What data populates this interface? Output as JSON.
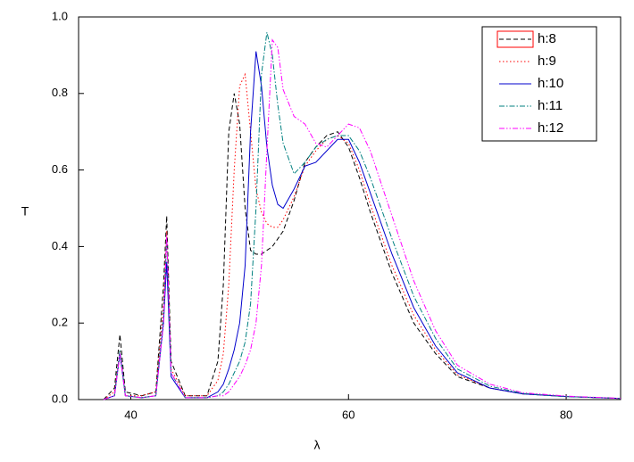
{
  "chart_data": {
    "type": "line",
    "xlabel": "λ",
    "ylabel": "T",
    "x": [
      37.5,
      38.5,
      39,
      39.5,
      41,
      42.3,
      43,
      43.3,
      43.7,
      45,
      47,
      48,
      48.5,
      49,
      49.5,
      50,
      50.5,
      51,
      51.5,
      52,
      52.5,
      53,
      53.5,
      54,
      55,
      56,
      57,
      58,
      59,
      60,
      61,
      62,
      64,
      66,
      68,
      70,
      73,
      76,
      80,
      85
    ],
    "series": [
      {
        "name": "h:8",
        "color": "#000000",
        "dash": "5,3",
        "values": [
          0,
          0.03,
          0.17,
          0.02,
          0.01,
          0.02,
          0.3,
          0.48,
          0.1,
          0.01,
          0.01,
          0.1,
          0.3,
          0.7,
          0.8,
          0.72,
          0.5,
          0.39,
          0.38,
          0.38,
          0.39,
          0.4,
          0.42,
          0.44,
          0.52,
          0.62,
          0.66,
          0.69,
          0.7,
          0.66,
          0.58,
          0.49,
          0.33,
          0.2,
          0.12,
          0.06,
          0.03,
          0.015,
          0.008,
          0.003
        ]
      },
      {
        "name": "h:9",
        "color": "#ff0000",
        "dash": "1.5,2.5",
        "values": [
          0,
          0.02,
          0.13,
          0.01,
          0.01,
          0.02,
          0.25,
          0.44,
          0.08,
          0.01,
          0.01,
          0.05,
          0.12,
          0.3,
          0.6,
          0.82,
          0.85,
          0.7,
          0.55,
          0.49,
          0.46,
          0.45,
          0.45,
          0.47,
          0.53,
          0.61,
          0.65,
          0.68,
          0.69,
          0.67,
          0.6,
          0.51,
          0.35,
          0.22,
          0.13,
          0.065,
          0.03,
          0.015,
          0.008,
          0.003
        ]
      },
      {
        "name": "h:10",
        "color": "#0000cc",
        "dash": "none",
        "values": [
          0,
          0.01,
          0.12,
          0.01,
          0.005,
          0.01,
          0.2,
          0.36,
          0.06,
          0.005,
          0.005,
          0.02,
          0.04,
          0.08,
          0.13,
          0.2,
          0.35,
          0.7,
          0.91,
          0.82,
          0.66,
          0.56,
          0.51,
          0.5,
          0.55,
          0.61,
          0.62,
          0.65,
          0.68,
          0.68,
          0.62,
          0.54,
          0.38,
          0.24,
          0.14,
          0.07,
          0.03,
          0.015,
          0.008,
          0.003
        ]
      },
      {
        "name": "h:11",
        "color": "#008080",
        "dash": "6,2,1.5,2",
        "values": [
          0,
          0.01,
          0.13,
          0.01,
          0.005,
          0.01,
          0.22,
          0.42,
          0.07,
          0.005,
          0.005,
          0.01,
          0.02,
          0.04,
          0.07,
          0.1,
          0.15,
          0.25,
          0.5,
          0.85,
          0.96,
          0.9,
          0.77,
          0.67,
          0.59,
          0.62,
          0.66,
          0.68,
          0.69,
          0.69,
          0.65,
          0.58,
          0.42,
          0.27,
          0.16,
          0.08,
          0.035,
          0.016,
          0.008,
          0.003
        ]
      },
      {
        "name": "h:12",
        "color": "#ff00ff",
        "dash": "6,2,1.5,2,1.5,2",
        "values": [
          0,
          0.01,
          0.12,
          0.01,
          0.005,
          0.01,
          0.2,
          0.43,
          0.07,
          0.005,
          0.005,
          0.01,
          0.01,
          0.02,
          0.04,
          0.06,
          0.09,
          0.13,
          0.2,
          0.35,
          0.65,
          0.94,
          0.92,
          0.81,
          0.74,
          0.72,
          0.67,
          0.66,
          0.69,
          0.72,
          0.71,
          0.65,
          0.48,
          0.31,
          0.18,
          0.09,
          0.04,
          0.018,
          0.009,
          0.003
        ]
      }
    ],
    "xlim": [
      35.2,
      85
    ],
    "ylim": [
      0,
      1.0
    ],
    "xticks": [
      40,
      60,
      80
    ],
    "yticks": [
      {
        "value": 0,
        "label": "0.0"
      },
      {
        "value": 0.2,
        "label": "0.2"
      },
      {
        "value": 0.4,
        "label": "0.4"
      },
      {
        "value": 0.6,
        "label": "0.6"
      },
      {
        "value": 0.8,
        "label": "0.8"
      },
      {
        "value": 1.0,
        "label": "1.0"
      }
    ],
    "legend": "upper right"
  }
}
